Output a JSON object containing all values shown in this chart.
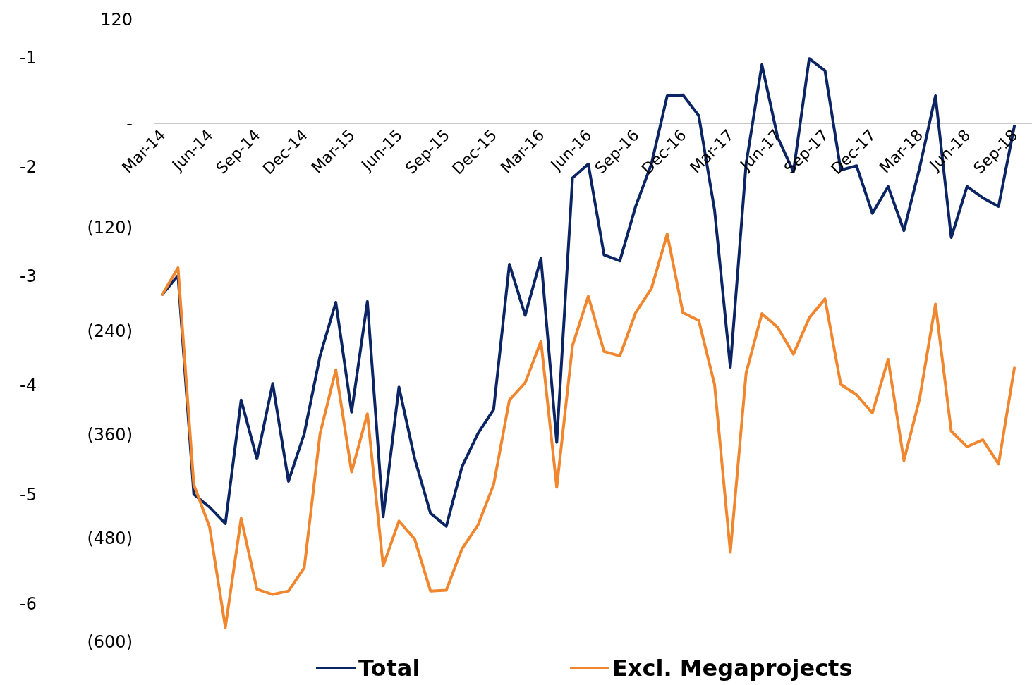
{
  "chart_data": {
    "type": "line",
    "categories": [
      "Mar-14",
      null,
      null,
      "Jun-14",
      null,
      null,
      "Sep-14",
      null,
      null,
      "Dec-14",
      null,
      null,
      "Mar-15",
      null,
      null,
      "Jun-15",
      null,
      null,
      "Sep-15",
      null,
      null,
      "Dec-15",
      null,
      null,
      "Mar-16",
      null,
      null,
      "Jun-16",
      null,
      null,
      "Sep-16",
      null,
      null,
      "Dec-16",
      null,
      null,
      "Mar-17",
      null,
      null,
      "Jun-17",
      null,
      null,
      "Sep-17",
      null,
      null,
      "Dec-17",
      null,
      null,
      "Mar-18",
      null,
      null,
      "Jun-18",
      null,
      null,
      "Sep-18"
    ],
    "series": [
      {
        "name": "Total",
        "color": "#0b2463",
        "values": [
          -198,
          -176,
          -429,
          -444,
          -463,
          -320,
          -388,
          -301,
          -414,
          -359,
          -269,
          -207,
          -334,
          -206,
          -455,
          -305,
          -388,
          -451,
          -466,
          -397,
          -359,
          -331,
          -163,
          -222,
          -156,
          -369,
          -63,
          -47,
          -152,
          -159,
          -96,
          -47,
          32,
          33,
          9,
          -100,
          -282,
          -47,
          68,
          -16,
          -56,
          75,
          61,
          -54,
          -49,
          -104,
          -73,
          -124,
          -51,
          32,
          -132,
          -73,
          -86,
          -96,
          -3
        ]
      },
      {
        "name": "Excl. Megaprojects",
        "color": "#f0862d",
        "values": [
          -198,
          -167,
          -418,
          -467,
          -583,
          -457,
          -539,
          -545,
          -541,
          -514,
          -359,
          -285,
          -403,
          -336,
          -512,
          -460,
          -481,
          -541,
          -540,
          -492,
          -465,
          -418,
          -320,
          -300,
          -252,
          -421,
          -257,
          -200,
          -264,
          -269,
          -219,
          -191,
          -128,
          -219,
          -228,
          -302,
          -496,
          -289,
          -220,
          -236,
          -267,
          -225,
          -203,
          -302,
          -314,
          -335,
          -273,
          -390,
          -318,
          -209,
          -356,
          -374,
          -366,
          -394,
          -283
        ]
      }
    ],
    "ylim": [
      -600,
      120
    ],
    "yticks": [
      120,
      {
        "value": 0,
        "label": "-"
      },
      {
        "value": -120,
        "label": "(120)"
      },
      {
        "value": -240,
        "label": "(240)"
      },
      {
        "value": -360,
        "label": "(360)"
      },
      {
        "value": -480,
        "label": "(480)"
      },
      {
        "value": -600,
        "label": "(600)"
      }
    ],
    "annotations": [
      "-1",
      "-2",
      "-3",
      "-4",
      "-5",
      "-6"
    ],
    "legend": "bottom",
    "grid": false,
    "line_style": "solid",
    "marker": "none"
  }
}
